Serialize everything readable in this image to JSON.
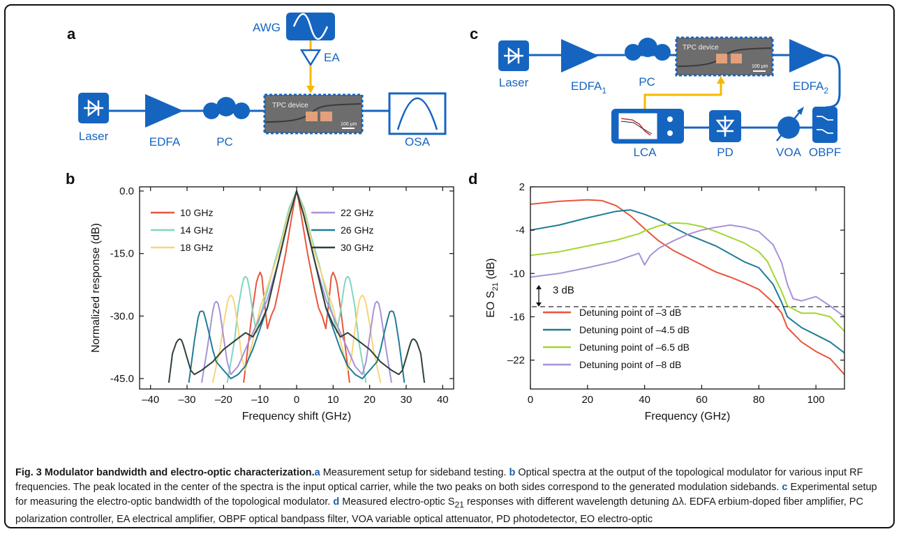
{
  "panels": {
    "a": "a",
    "b": "b",
    "c": "c",
    "d": "d"
  },
  "setup_a": {
    "laser": "Laser",
    "edfa": "EDFA",
    "pc": "PC",
    "osa": "OSA",
    "awg": "AWG",
    "ea": "EA",
    "device": "TPC device",
    "scale": "100 μm"
  },
  "setup_c": {
    "laser": "Laser",
    "edfa1": "EDFA",
    "edfa1_sub": "1",
    "pc": "PC",
    "edfa2": "EDFA",
    "edfa2_sub": "2",
    "device": "TPC device",
    "scale": "100 μm",
    "lca": "LCA",
    "pd": "PD",
    "voa": "VOA",
    "obpf": "OBPF"
  },
  "colors": {
    "accent_blue": "#1565c0",
    "arrow_yellow": "#f5b800",
    "caption_blue": "#1f5fa8"
  },
  "chart_data": [
    {
      "type": "line",
      "panel": "b",
      "xlabel": "Frequency shift (GHz)",
      "ylabel": "Normalized response (dB)",
      "xlim": [
        -43,
        43
      ],
      "ylim": [
        -47.5,
        1
      ],
      "xticks": [
        -40,
        -30,
        -20,
        -10,
        0,
        10,
        20,
        30,
        40
      ],
      "xtick_labels": [
        "–40",
        "–30",
        "–20",
        "–10",
        "0",
        "10",
        "20",
        "30",
        "40"
      ],
      "yticks": [
        0,
        -15,
        -30,
        -45
      ],
      "ytick_labels": [
        "0.0",
        "-15.0",
        "-30.0",
        "-45.0"
      ],
      "legend": [
        "10 GHz",
        "14 GHz",
        "18 GHz",
        "22 GHz",
        "26 GHz",
        "30 GHz"
      ],
      "series": [
        {
          "name": "10 GHz",
          "color": "#e8553b",
          "x": [
            -14.5,
            -13,
            -12,
            -11,
            -10.5,
            -10,
            -9.5,
            -9,
            -8,
            -7,
            -6,
            -5,
            -3,
            -1.5,
            -0.5,
            0,
            0.5,
            1.5,
            3,
            5,
            6,
            7,
            8,
            9,
            9.5,
            10,
            10.5,
            11,
            12,
            13,
            14.5
          ],
          "y": [
            -46,
            -35,
            -28,
            -22,
            -20.5,
            -19.5,
            -20.5,
            -25,
            -33,
            -30,
            -28,
            -24,
            -15,
            -7,
            -2,
            0,
            -2,
            -7,
            -15,
            -24,
            -28,
            -30,
            -33,
            -25,
            -20.5,
            -19.5,
            -20.5,
            -22,
            -28,
            -35,
            -46
          ]
        },
        {
          "name": "14 GHz",
          "color": "#7fd6c0",
          "x": [
            -19,
            -17,
            -16,
            -15,
            -14.5,
            -14,
            -13.5,
            -13,
            -12,
            -11,
            -10,
            -9,
            -8,
            -6,
            -4,
            -2,
            0,
            2,
            4,
            6,
            8,
            9,
            10,
            11,
            12,
            13,
            13.5,
            14,
            14.5,
            15,
            16,
            17,
            19
          ],
          "y": [
            -46,
            -36,
            -28,
            -23,
            -21,
            -20.5,
            -21,
            -23,
            -29,
            -34,
            -30,
            -27,
            -24,
            -17,
            -11,
            -4,
            0,
            -4,
            -11,
            -17,
            -24,
            -27,
            -30,
            -34,
            -29,
            -23,
            -21,
            -20.5,
            -21,
            -23,
            -28,
            -36,
            -46
          ]
        },
        {
          "name": "18 GHz",
          "color": "#f7d57a",
          "x": [
            -23,
            -21,
            -20,
            -19,
            -18.5,
            -18,
            -17.5,
            -17,
            -16,
            -15,
            -14,
            -12,
            -10,
            -8,
            -5,
            -2,
            0,
            2,
            5,
            8,
            10,
            12,
            14,
            15,
            16,
            17,
            17.5,
            18,
            18.5,
            19,
            20,
            21,
            23
          ],
          "y": [
            -46,
            -38,
            -32,
            -27,
            -25.5,
            -25,
            -25.5,
            -27,
            -33,
            -40,
            -43,
            -36,
            -28,
            -23,
            -15,
            -5,
            0,
            -5,
            -15,
            -23,
            -28,
            -36,
            -43,
            -40,
            -33,
            -27,
            -25.5,
            -25,
            -25.5,
            -27,
            -32,
            -38,
            -46
          ]
        },
        {
          "name": "22 GHz",
          "color": "#a792d6",
          "x": [
            -26,
            -24.5,
            -23,
            -22.5,
            -22,
            -21.5,
            -21,
            -20,
            -19,
            -18,
            -16,
            -14,
            -12,
            -10,
            -8,
            -5,
            -2,
            0,
            2,
            5,
            8,
            10,
            12,
            14,
            16,
            18,
            19,
            20,
            21,
            21.5,
            22,
            22.5,
            23,
            24.5,
            26
          ],
          "y": [
            -46,
            -38,
            -29,
            -27,
            -26.5,
            -27,
            -29,
            -35,
            -41,
            -44,
            -42,
            -38,
            -34,
            -30,
            -26,
            -17,
            -6,
            0,
            -6,
            -17,
            -26,
            -30,
            -34,
            -38,
            -42,
            -44,
            -41,
            -35,
            -29,
            -27,
            -26.5,
            -27,
            -29,
            -38,
            -46
          ]
        },
        {
          "name": "26 GHz",
          "color": "#1f7c96",
          "x": [
            -29.5,
            -28,
            -27,
            -26.5,
            -26,
            -25.5,
            -25,
            -24,
            -23,
            -22,
            -20,
            -18,
            -16,
            -14,
            -12,
            -10,
            -8,
            -5,
            -2,
            0,
            2,
            5,
            8,
            10,
            12,
            14,
            16,
            18,
            20,
            22,
            23,
            24,
            25,
            25.5,
            26,
            26.5,
            27,
            28,
            29.5
          ],
          "y": [
            -46,
            -36,
            -30.5,
            -29,
            -28.8,
            -29,
            -30.5,
            -34,
            -38,
            -41,
            -43,
            -45,
            -44,
            -42,
            -38,
            -33,
            -28,
            -17,
            -6,
            0,
            -6,
            -17,
            -28,
            -33,
            -38,
            -42,
            -44,
            -45,
            -43,
            -41,
            -38,
            -34,
            -30.5,
            -29,
            -28.8,
            -29,
            -30.5,
            -36,
            -46
          ]
        },
        {
          "name": "30 GHz",
          "color": "#2f4038",
          "x": [
            -35,
            -34,
            -33,
            -32.5,
            -32,
            -31.5,
            -31,
            -30,
            -29,
            -28,
            -26,
            -23,
            -20,
            -17,
            -14,
            -12,
            -10,
            -8,
            -5,
            -2,
            0,
            2,
            5,
            8,
            10,
            12,
            14,
            17,
            20,
            23,
            26,
            28,
            29,
            30,
            31,
            31.5,
            32,
            32.5,
            33,
            34,
            35
          ],
          "y": [
            -46,
            -39,
            -36.5,
            -35.8,
            -35.5,
            -35.8,
            -37,
            -40,
            -43,
            -44,
            -43,
            -41,
            -38,
            -36,
            -34,
            -35,
            -32,
            -28,
            -17,
            -6,
            0,
            -6,
            -17,
            -28,
            -32,
            -35,
            -34,
            -36,
            -38,
            -41,
            -43,
            -44,
            -43,
            -40,
            -37,
            -35.8,
            -35.5,
            -35.8,
            -36.5,
            -39,
            -46
          ]
        }
      ]
    },
    {
      "type": "line",
      "panel": "d",
      "xlabel": "Frequency (GHz)",
      "ylabel": "EO S",
      "ylabel_sub": "21",
      "ylabel_unit": " (dB)",
      "xlim": [
        0,
        110
      ],
      "ylim": [
        -26,
        2
      ],
      "xticks": [
        0,
        20,
        40,
        60,
        80,
        100
      ],
      "xtick_labels": [
        "0",
        "20",
        "40",
        "60",
        "80",
        "100"
      ],
      "yticks": [
        2,
        -4,
        -10,
        -16,
        -22
      ],
      "ytick_labels": [
        "2",
        "-4",
        "-10",
        "-16",
        "–22"
      ],
      "reference_line_y": -14.6,
      "annotation": "3 dB",
      "legend": [
        "Detuning point of –3 dB",
        "Detuning point of –4.5 dB",
        "Detuning point of –6.5 dB",
        "Detuning point of –8 dB"
      ],
      "series": [
        {
          "name": "Detuning point of –3 dB",
          "color": "#e8553b",
          "x": [
            0,
            10,
            20,
            25,
            30,
            35,
            40,
            45,
            50,
            55,
            60,
            65,
            70,
            75,
            80,
            85,
            88,
            90,
            95,
            100,
            105,
            110
          ],
          "y": [
            -0.4,
            0,
            0.2,
            0.1,
            -0.6,
            -2,
            -3.8,
            -5.5,
            -6.8,
            -7.8,
            -8.8,
            -9.8,
            -10.5,
            -11.3,
            -12.2,
            -14,
            -15.5,
            -17.5,
            -19.5,
            -20.8,
            -21.8,
            -24
          ]
        },
        {
          "name": "Detuning point of –4.5 dB",
          "color": "#1f7c96",
          "x": [
            0,
            10,
            20,
            30,
            35,
            40,
            45,
            50,
            55,
            60,
            65,
            70,
            75,
            80,
            85,
            88,
            90,
            95,
            100,
            105,
            110
          ],
          "y": [
            -4,
            -3.3,
            -2.3,
            -1.4,
            -1.2,
            -1.8,
            -2.6,
            -3.6,
            -4.6,
            -5.4,
            -6.2,
            -7.3,
            -8.4,
            -9.2,
            -11.5,
            -14,
            -16,
            -17.5,
            -18.5,
            -19.5,
            -21
          ]
        },
        {
          "name": "Detuning point of –6.5 dB",
          "color": "#a2d630",
          "x": [
            0,
            10,
            20,
            30,
            38,
            40,
            45,
            50,
            55,
            60,
            65,
            70,
            75,
            80,
            83,
            85,
            88,
            90,
            95,
            100,
            105,
            110
          ],
          "y": [
            -7.5,
            -7,
            -6.2,
            -5.4,
            -4.5,
            -4.1,
            -3.4,
            -3,
            -3.1,
            -3.5,
            -4.2,
            -5,
            -5.8,
            -7,
            -8.3,
            -10,
            -12.5,
            -14.5,
            -15.5,
            -15.5,
            -16,
            -18
          ]
        },
        {
          "name": "Detuning point of –8 dB",
          "color": "#a792d6",
          "x": [
            0,
            10,
            20,
            30,
            35,
            38,
            40,
            42,
            45,
            50,
            55,
            60,
            65,
            70,
            75,
            80,
            85,
            88,
            90,
            92,
            95,
            100,
            105,
            110
          ],
          "y": [
            -10.5,
            -10,
            -9.2,
            -8.3,
            -7.6,
            -7.2,
            -8.8,
            -7.5,
            -6.5,
            -5.5,
            -4.6,
            -4,
            -3.6,
            -3.3,
            -3.6,
            -4.2,
            -6,
            -8.5,
            -11.5,
            -13.5,
            -13.8,
            -13.2,
            -14.5,
            -16
          ]
        }
      ]
    }
  ],
  "caption": {
    "title": "Fig. 3 Modulator bandwidth and electro-optic characterization.",
    "a": "a",
    "a_text": " Measurement setup for sideband testing. ",
    "b": "b",
    "b_text": " Optical spectra at the output of the topological modulator for various input RF frequencies. The peak located in the center of the spectra is the input optical carrier, while the two peaks on both sides correspond to the generated modulation sidebands. ",
    "c": "c",
    "c_text": " Experimental setup for measuring the electro-optic bandwidth of the topological modulator. ",
    "d": "d",
    "d_text_1": " Measured electro-optic S",
    "d_sub": "21",
    "d_text_2": " responses with different wavelength detuning Δλ. EDFA erbium-doped fiber amplifier, PC polarization controller, EA electrical amplifier, OBPF optical bandpass filter, VOA variable optical attenuator, PD photodetector, EO electro-optic"
  }
}
